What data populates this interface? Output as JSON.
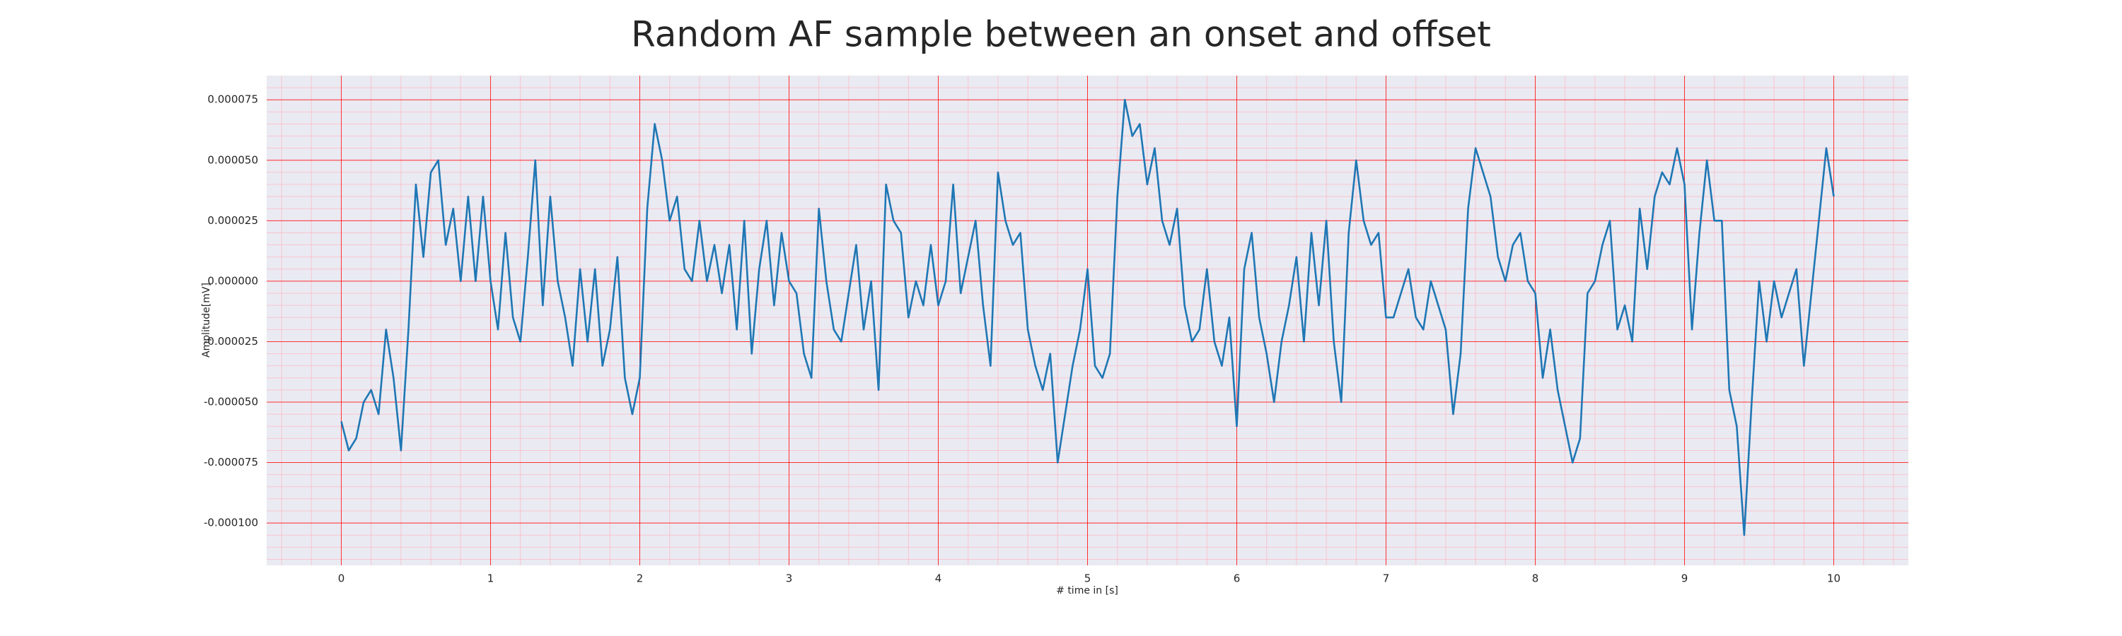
{
  "chart_data": {
    "type": "line",
    "title": "Random AF sample between an onset and offset",
    "xlabel": "# time in [s]",
    "ylabel": "Amplitude[mV]",
    "color": "#1f77b4",
    "background": "#eaeaf2",
    "grid": true,
    "grid_color": "#ff0000",
    "minor_grid": true,
    "minor_grid_color": "#ffb6c1",
    "xlim": [
      -0.5,
      10.5
    ],
    "ylim": [
      -0.0001175,
      8.5e-05
    ],
    "xticks": [
      0,
      1,
      2,
      3,
      4,
      5,
      6,
      7,
      8,
      9,
      10
    ],
    "yticks": [
      {
        "value": -0.0001,
        "label": "-0.000100"
      },
      -7.5e-05,
      {
        "value": -5e-05,
        "label": "-0.000050"
      },
      -2.5e-05,
      {
        "value": 0,
        "label": "0.000000"
      },
      2.5e-05,
      {
        "value": 5e-05,
        "label": "0.000050"
      },
      7.5e-05
    ],
    "x": [
      0,
      0.05,
      0.1,
      0.15,
      0.2,
      0.25,
      0.3,
      0.35,
      0.4,
      0.45,
      0.5,
      0.55,
      0.6,
      0.65,
      0.7,
      0.75,
      0.8,
      0.85,
      0.9,
      0.95,
      1,
      1.05,
      1.1,
      1.15,
      1.2,
      1.25,
      1.3,
      1.35,
      1.4,
      1.45,
      1.5,
      1.55,
      1.6,
      1.65,
      1.7,
      1.75,
      1.8,
      1.85,
      1.9,
      1.95,
      2,
      2.05,
      2.1,
      2.15,
      2.2,
      2.25,
      2.3,
      2.35,
      2.4,
      2.45,
      2.5,
      2.55,
      2.6,
      2.65,
      2.7,
      2.75,
      2.8,
      2.85,
      2.9,
      2.95,
      3,
      3.05,
      3.1,
      3.15,
      3.2,
      3.25,
      3.3,
      3.35,
      3.4,
      3.45,
      3.5,
      3.55,
      3.6,
      3.65,
      3.7,
      3.75,
      3.8,
      3.85,
      3.9,
      3.95,
      4,
      4.05,
      4.1,
      4.15,
      4.2,
      4.25,
      4.3,
      4.35,
      4.4,
      4.45,
      4.5,
      4.55,
      4.6,
      4.65,
      4.7,
      4.75,
      4.8,
      4.85,
      4.9,
      4.95,
      5,
      5.05,
      5.1,
      5.15,
      5.2,
      5.25,
      5.3,
      5.35,
      5.4,
      5.45,
      5.5,
      5.55,
      5.6,
      5.65,
      5.7,
      5.75,
      5.8,
      5.85,
      5.9,
      5.95,
      6,
      6.05,
      6.1,
      6.15,
      6.2,
      6.25,
      6.3,
      6.35,
      6.4,
      6.45,
      6.5,
      6.55,
      6.6,
      6.65,
      6.7,
      6.75,
      6.8,
      6.85,
      6.9,
      6.95,
      7,
      7.05,
      7.1,
      7.15,
      7.2,
      7.25,
      7.3,
      7.35,
      7.4,
      7.45,
      7.5,
      7.55,
      7.6,
      7.65,
      7.7,
      7.75,
      7.8,
      7.85,
      7.9,
      7.95,
      8,
      8.05,
      8.1,
      8.15,
      8.2,
      8.25,
      8.3,
      8.35,
      8.4,
      8.45,
      8.5,
      8.55,
      8.6,
      8.65,
      8.7,
      8.75,
      8.8,
      8.85,
      8.9,
      8.95,
      9,
      9.05,
      9.1,
      9.15,
      9.2,
      9.25,
      9.3,
      9.35,
      9.4,
      9.45,
      9.5,
      9.55,
      9.6,
      9.65,
      9.7,
      9.75,
      9.8,
      9.85,
      9.9,
      9.95,
      10
    ],
    "values": [
      -5.8e-05,
      -7e-05,
      -6.5e-05,
      -5e-05,
      -4.5e-05,
      -5.5e-05,
      -2e-05,
      -4e-05,
      -7e-05,
      -2e-05,
      4e-05,
      1e-05,
      4.5e-05,
      5e-05,
      1.5e-05,
      3e-05,
      0,
      3.5e-05,
      0,
      3.5e-05,
      0,
      -2e-05,
      2e-05,
      -1.5e-05,
      -2.5e-05,
      1e-05,
      5e-05,
      -1e-05,
      3.5e-05,
      0,
      -1.5e-05,
      -3.5e-05,
      5e-06,
      -2.5e-05,
      5e-06,
      -3.5e-05,
      -2e-05,
      1e-05,
      -4e-05,
      -5.5e-05,
      -4e-05,
      3e-05,
      6.5e-05,
      5e-05,
      2.5e-05,
      3.5e-05,
      5e-06,
      0,
      2.5e-05,
      0,
      1.5e-05,
      -5e-06,
      1.5e-05,
      -2e-05,
      2.5e-05,
      -3e-05,
      5e-06,
      2.5e-05,
      -1e-05,
      2e-05,
      0,
      -5e-06,
      -3e-05,
      -4e-05,
      3e-05,
      0,
      -2e-05,
      -2.5e-05,
      -5e-06,
      1.5e-05,
      -2e-05,
      0,
      -4.5e-05,
      4e-05,
      2.5e-05,
      2e-05,
      -1.5e-05,
      0,
      -1e-05,
      1.5e-05,
      -1e-05,
      0,
      4e-05,
      -5e-06,
      1e-05,
      2.5e-05,
      -1e-05,
      -3.5e-05,
      4.5e-05,
      2.5e-05,
      1.5e-05,
      2e-05,
      -2e-05,
      -3.5e-05,
      -4.5e-05,
      -3e-05,
      -7.5e-05,
      -5.5e-05,
      -3.5e-05,
      -2e-05,
      5e-06,
      -3.5e-05,
      -4e-05,
      -3e-05,
      3.5e-05,
      7.5e-05,
      6e-05,
      6.5e-05,
      4e-05,
      5.5e-05,
      2.5e-05,
      1.5e-05,
      3e-05,
      -1e-05,
      -2.5e-05,
      -2e-05,
      5e-06,
      -2.5e-05,
      -3.5e-05,
      -1.5e-05,
      -6e-05,
      5e-06,
      2e-05,
      -1.5e-05,
      -3e-05,
      -5e-05,
      -2.5e-05,
      -1e-05,
      1e-05,
      -2.5e-05,
      2e-05,
      -1e-05,
      2.5e-05,
      -2.5e-05,
      -5e-05,
      2e-05,
      5e-05,
      2.5e-05,
      1.5e-05,
      2e-05,
      -1.5e-05,
      -1.5e-05,
      -5e-06,
      5e-06,
      -1.5e-05,
      -2e-05,
      0,
      -1e-05,
      -2e-05,
      -5.5e-05,
      -3e-05,
      3e-05,
      5.5e-05,
      4.5e-05,
      3.5e-05,
      1e-05,
      0,
      1.5e-05,
      2e-05,
      0,
      -5e-06,
      -4e-05,
      -2e-05,
      -4.5e-05,
      -6e-05,
      -7.5e-05,
      -6.5e-05,
      -5e-06,
      0,
      1.5e-05,
      2.5e-05,
      -2e-05,
      -1e-05,
      -2.5e-05,
      3e-05,
      5e-06,
      3.5e-05,
      4.5e-05,
      4e-05,
      5.5e-05,
      4e-05,
      -2e-05,
      2e-05,
      5e-05,
      2.5e-05,
      2.5e-05,
      -4.5e-05,
      -6e-05,
      -0.000105,
      -5e-05,
      0,
      -2.5e-05,
      0,
      -1.5e-05,
      -5e-06,
      5e-06,
      -3.5e-05,
      -5e-06,
      2.5e-05,
      5.5e-05,
      3.5e-05
    ]
  }
}
